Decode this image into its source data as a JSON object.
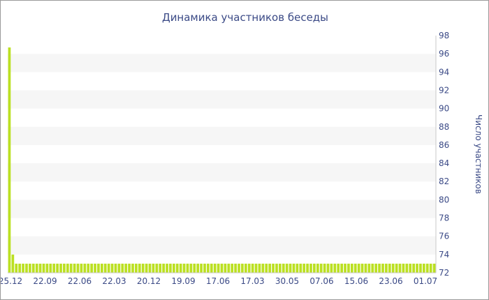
{
  "chart_data": {
    "type": "bar",
    "title": "Динамика участников беседы",
    "xlabel": "",
    "ylabel": "Число участников",
    "ylim": [
      72,
      98
    ],
    "y_ticks": [
      72,
      74,
      76,
      78,
      80,
      82,
      84,
      86,
      88,
      90,
      92,
      94,
      96,
      98
    ],
    "y_axis_position": "right",
    "grid": "horizontal alternating bands",
    "x_tick_labels": [
      "25.12",
      "22.09",
      "22.06",
      "22.03",
      "20.12",
      "19.09",
      "17.06",
      "17.03",
      "30.05",
      "07.06",
      "15.06",
      "23.06",
      "01.07"
    ],
    "bar_color": "#bbe022",
    "band_color": "#f6f6f6",
    "values": [
      96.7,
      74,
      73,
      73,
      73,
      73,
      73,
      73,
      73,
      73,
      73,
      73,
      73,
      73,
      73,
      73,
      73,
      73,
      73,
      73,
      73,
      73,
      73,
      73,
      73,
      73,
      73,
      73,
      73,
      73,
      73,
      73,
      73,
      73,
      73,
      73,
      73,
      73,
      73,
      73,
      73,
      73,
      73,
      73,
      73,
      73,
      73,
      73,
      73,
      73,
      73,
      73,
      73,
      73,
      73,
      73,
      73,
      73,
      73,
      73,
      73,
      73,
      73,
      73,
      73,
      73,
      73,
      73,
      73,
      73,
      73,
      73,
      73,
      73,
      73,
      73,
      73,
      73,
      73,
      73,
      73,
      73,
      73,
      73,
      73,
      73,
      73,
      73,
      73,
      73,
      73,
      73,
      73,
      73,
      73,
      73,
      73,
      73,
      73,
      73,
      73,
      73,
      73,
      73,
      73,
      73,
      73,
      73,
      73,
      73,
      73,
      73,
      73,
      73,
      73,
      73,
      73,
      73,
      73,
      73,
      73,
      73,
      73,
      73,
      73
    ]
  }
}
